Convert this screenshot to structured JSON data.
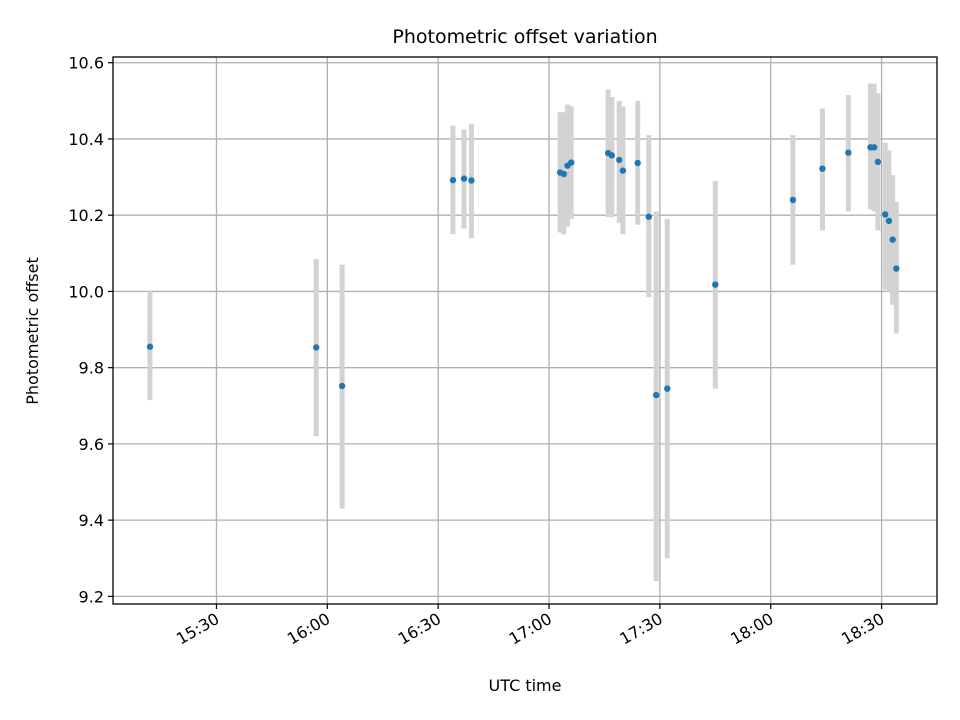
{
  "chart_data": {
    "type": "scatter",
    "title": "Photometric offset variation",
    "xlabel": "UTC time",
    "ylabel": "Photometric offset",
    "xlim": [
      "15:02",
      "18:45"
    ],
    "ylim": [
      9.18,
      10.615
    ],
    "x_ticks": [
      "15:30",
      "16:00",
      "16:30",
      "17:00",
      "17:30",
      "18:00",
      "18:30"
    ],
    "y_ticks": [
      "9.2",
      "9.4",
      "9.6",
      "9.8",
      "10.0",
      "10.2",
      "10.4",
      "10.6"
    ],
    "grid": true,
    "marker_color": "#1f77b4",
    "errorbar_color": "#d3d3d3",
    "points": [
      {
        "time": "15:12",
        "value": 9.855,
        "lower": 9.715,
        "upper": 10.0
      },
      {
        "time": "15:57",
        "value": 9.853,
        "lower": 9.62,
        "upper": 10.085
      },
      {
        "time": "16:04",
        "value": 9.752,
        "lower": 9.43,
        "upper": 10.07
      },
      {
        "time": "16:34",
        "value": 10.292,
        "lower": 10.15,
        "upper": 10.435
      },
      {
        "time": "16:37",
        "value": 10.296,
        "lower": 10.165,
        "upper": 10.425
      },
      {
        "time": "16:39",
        "value": 10.291,
        "lower": 10.14,
        "upper": 10.44
      },
      {
        "time": "17:03",
        "value": 10.312,
        "lower": 10.155,
        "upper": 10.47
      },
      {
        "time": "17:04",
        "value": 10.308,
        "lower": 10.15,
        "upper": 10.47
      },
      {
        "time": "17:05",
        "value": 10.33,
        "lower": 10.17,
        "upper": 10.49
      },
      {
        "time": "17:06",
        "value": 10.338,
        "lower": 10.19,
        "upper": 10.485
      },
      {
        "time": "17:16",
        "value": 10.363,
        "lower": 10.195,
        "upper": 10.53
      },
      {
        "time": "17:17",
        "value": 10.357,
        "lower": 10.195,
        "upper": 10.51
      },
      {
        "time": "17:19",
        "value": 10.345,
        "lower": 10.18,
        "upper": 10.5
      },
      {
        "time": "17:20",
        "value": 10.317,
        "lower": 10.15,
        "upper": 10.485
      },
      {
        "time": "17:24",
        "value": 10.337,
        "lower": 10.175,
        "upper": 10.5
      },
      {
        "time": "17:27",
        "value": 10.196,
        "lower": 9.985,
        "upper": 10.41
      },
      {
        "time": "17:29",
        "value": 9.728,
        "lower": 9.24,
        "upper": 10.21
      },
      {
        "time": "17:32",
        "value": 9.745,
        "lower": 9.3,
        "upper": 10.19
      },
      {
        "time": "17:45",
        "value": 10.018,
        "lower": 9.745,
        "upper": 10.29
      },
      {
        "time": "18:06",
        "value": 10.24,
        "lower": 10.07,
        "upper": 10.41
      },
      {
        "time": "18:14",
        "value": 10.322,
        "lower": 10.16,
        "upper": 10.48
      },
      {
        "time": "18:21",
        "value": 10.364,
        "lower": 10.21,
        "upper": 10.515
      },
      {
        "time": "18:27",
        "value": 10.378,
        "lower": 10.215,
        "upper": 10.545
      },
      {
        "time": "18:28",
        "value": 10.378,
        "lower": 10.21,
        "upper": 10.545
      },
      {
        "time": "18:29",
        "value": 10.34,
        "lower": 10.16,
        "upper": 10.52
      },
      {
        "time": "18:31",
        "value": 10.202,
        "lower": 10.005,
        "upper": 10.39
      },
      {
        "time": "18:32",
        "value": 10.185,
        "lower": 10.0,
        "upper": 10.37
      },
      {
        "time": "18:33",
        "value": 10.136,
        "lower": 9.965,
        "upper": 10.305
      },
      {
        "time": "18:34",
        "value": 10.06,
        "lower": 9.89,
        "upper": 10.235
      }
    ]
  }
}
